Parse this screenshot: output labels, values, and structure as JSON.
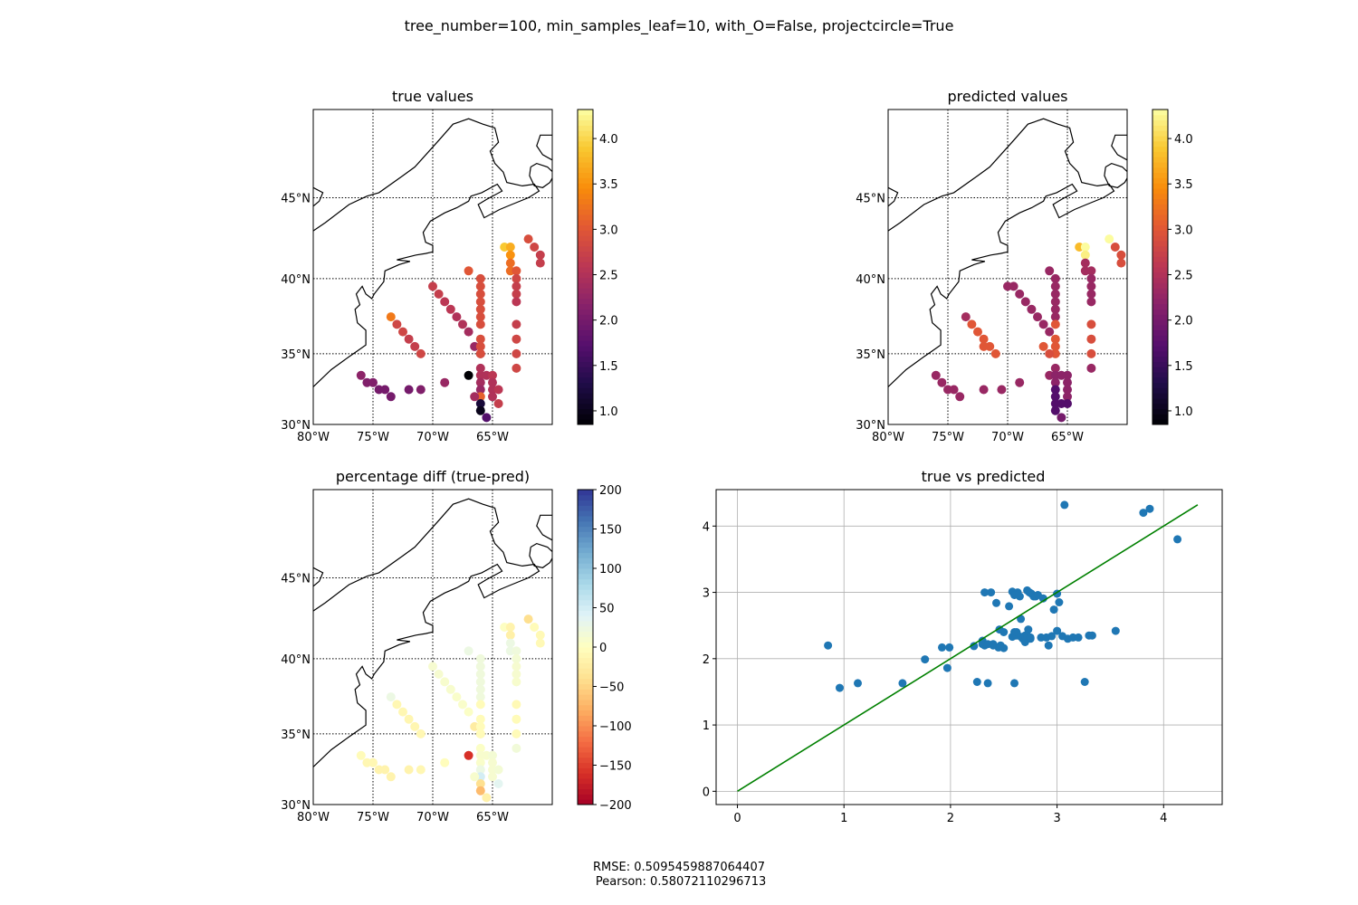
{
  "suptitle": "tree_number=100, min_samples_leaf=10, with_O=False, projectcircle=True",
  "footer": {
    "line1": "RMSE: 0.5095459887064407",
    "line2": " Pearson: 0.58072110296713"
  },
  "colors": {
    "scatter": "#1f77b4",
    "fit_line": "#008000",
    "grid": "#b0b0b0"
  },
  "map_axes": {
    "lon_ticks": [
      "80°W",
      "75°W",
      "70°W",
      "65°W"
    ],
    "lat_ticks": [
      "30°N",
      "35°N",
      "40°N",
      "45°N"
    ]
  },
  "chart_data": [
    {
      "type": "scatter",
      "title": "true values",
      "colormap": "inferno",
      "colorbar": {
        "range": [
          0.85,
          4.32
        ],
        "ticks": [
          "1.0",
          "1.5",
          "2.0",
          "2.5",
          "3.0",
          "3.5",
          "4.0"
        ]
      },
      "points": [
        [
          -76,
          33.5,
          2.2
        ],
        [
          -75.5,
          33,
          2.1
        ],
        [
          -75,
          33,
          2.1
        ],
        [
          -74.5,
          32.5,
          2.0
        ],
        [
          -74,
          32.5,
          2.0
        ],
        [
          -73.5,
          32,
          2.0
        ],
        [
          -72,
          32.5,
          2.0
        ],
        [
          -71,
          32.5,
          2.1
        ],
        [
          -69,
          33,
          2.3
        ],
        [
          -73.5,
          37.5,
          3.3
        ],
        [
          -73,
          37,
          2.8
        ],
        [
          -72.5,
          36.5,
          2.8
        ],
        [
          -72,
          36,
          2.7
        ],
        [
          -71.5,
          35.5,
          2.7
        ],
        [
          -71,
          35,
          2.8
        ],
        [
          -70,
          39.5,
          2.7
        ],
        [
          -69.5,
          39,
          2.7
        ],
        [
          -69,
          38.5,
          2.6
        ],
        [
          -68.5,
          38,
          2.6
        ],
        [
          -68,
          37.5,
          2.5
        ],
        [
          -67.5,
          37,
          2.5
        ],
        [
          -67,
          36.5,
          2.4
        ],
        [
          -66.5,
          35.5,
          2.3
        ],
        [
          -66,
          35,
          2.3
        ],
        [
          -67,
          40.5,
          3.0
        ],
        [
          -66,
          40,
          2.9
        ],
        [
          -66,
          39.5,
          2.9
        ],
        [
          -66,
          39,
          2.9
        ],
        [
          -66,
          38.5,
          2.9
        ],
        [
          -66,
          38,
          2.9
        ],
        [
          -66,
          37.5,
          2.9
        ],
        [
          -66,
          37,
          2.9
        ],
        [
          -66,
          36,
          2.9
        ],
        [
          -66,
          35.5,
          2.9
        ],
        [
          -66,
          35,
          2.9
        ],
        [
          -67,
          33.5,
          0.85
        ],
        [
          -66,
          34,
          2.5
        ],
        [
          -66,
          33.5,
          2.5
        ],
        [
          -66,
          33,
          2.4
        ],
        [
          -66,
          32.5,
          2.3
        ],
        [
          -66,
          32,
          3.1
        ],
        [
          -66,
          31.5,
          1.2
        ],
        [
          -66,
          31,
          1.0
        ],
        [
          -65.5,
          30.5,
          1.7
        ],
        [
          -65.5,
          33.5,
          2.5
        ],
        [
          -65,
          33.5,
          2.6
        ],
        [
          -65,
          33,
          2.5
        ],
        [
          -65,
          32.5,
          2.5
        ],
        [
          -65,
          32,
          2.5
        ],
        [
          -64.5,
          31.5,
          2.7
        ],
        [
          -64.5,
          32.5,
          2.6
        ],
        [
          -66.5,
          32,
          2.4
        ],
        [
          -64,
          42,
          3.9
        ],
        [
          -63.5,
          42,
          3.7
        ],
        [
          -63.5,
          41.5,
          3.5
        ],
        [
          -63.5,
          41,
          3.2
        ],
        [
          -63.5,
          40.5,
          3.2
        ],
        [
          -63,
          40.5,
          3.0
        ],
        [
          -63,
          40,
          2.8
        ],
        [
          -63,
          39.5,
          2.7
        ],
        [
          -63,
          39,
          2.7
        ],
        [
          -63,
          38.5,
          2.6
        ],
        [
          -63,
          37,
          2.7
        ],
        [
          -63,
          36,
          2.8
        ],
        [
          -63,
          35,
          2.8
        ],
        [
          -63,
          34,
          2.8
        ],
        [
          -62,
          42.5,
          2.9
        ],
        [
          -61.5,
          42,
          2.8
        ],
        [
          -61,
          41.5,
          2.7
        ],
        [
          -61,
          41,
          2.7
        ]
      ]
    },
    {
      "type": "scatter",
      "title": "predicted values",
      "colormap": "inferno",
      "colorbar": {
        "range": [
          0.85,
          4.32
        ],
        "ticks": [
          "1.0",
          "1.5",
          "2.0",
          "2.5",
          "3.0",
          "3.5",
          "4.0"
        ]
      },
      "points": [
        [
          -76,
          33.5,
          2.3
        ],
        [
          -75.5,
          33,
          2.3
        ],
        [
          -75,
          32.5,
          2.3
        ],
        [
          -74.5,
          32.5,
          2.3
        ],
        [
          -74,
          32,
          2.3
        ],
        [
          -72,
          32.5,
          2.3
        ],
        [
          -70.5,
          32.5,
          2.3
        ],
        [
          -69,
          33,
          2.3
        ],
        [
          -73.5,
          37.5,
          2.4
        ],
        [
          -73,
          37,
          3.0
        ],
        [
          -72.5,
          36.5,
          3.0
        ],
        [
          -72,
          36,
          3.0
        ],
        [
          -71.5,
          35.5,
          3.0
        ],
        [
          -71,
          35,
          3.0
        ],
        [
          -72,
          35.5,
          3.0
        ],
        [
          -70,
          39.5,
          2.3
        ],
        [
          -69.5,
          39.5,
          2.3
        ],
        [
          -69,
          39,
          2.3
        ],
        [
          -68.5,
          38.5,
          2.3
        ],
        [
          -68,
          38,
          2.3
        ],
        [
          -67.5,
          37.5,
          2.3
        ],
        [
          -67,
          37,
          2.3
        ],
        [
          -66.5,
          36.5,
          2.3
        ],
        [
          -67,
          35.5,
          3.0
        ],
        [
          -66.5,
          40.5,
          2.3
        ],
        [
          -66,
          40,
          2.3
        ],
        [
          -66,
          39.5,
          2.3
        ],
        [
          -66,
          39,
          2.3
        ],
        [
          -66,
          38.5,
          2.3
        ],
        [
          -66,
          38,
          2.3
        ],
        [
          -66,
          37.5,
          2.3
        ],
        [
          -66,
          37,
          3.0
        ],
        [
          -66,
          36,
          3.0
        ],
        [
          -66,
          35.5,
          3.0
        ],
        [
          -66,
          35,
          3.0
        ],
        [
          -66.5,
          35,
          2.9
        ],
        [
          -66.5,
          33.5,
          2.3
        ],
        [
          -66,
          34,
          2.3
        ],
        [
          -66,
          33.5,
          2.2
        ],
        [
          -66,
          33,
          2.2
        ],
        [
          -66,
          32.5,
          1.7
        ],
        [
          -66,
          32,
          1.7
        ],
        [
          -66,
          31.5,
          1.7
        ],
        [
          -66,
          31,
          1.7
        ],
        [
          -65.5,
          30.5,
          2.0
        ],
        [
          -65.5,
          33.5,
          2.2
        ],
        [
          -65,
          33.5,
          2.2
        ],
        [
          -65,
          33,
          2.2
        ],
        [
          -65,
          32.5,
          2.2
        ],
        [
          -65,
          32,
          2.2
        ],
        [
          -65,
          31.5,
          1.7
        ],
        [
          -65.5,
          31.5,
          1.7
        ],
        [
          -64,
          42,
          3.8
        ],
        [
          -63.5,
          42,
          4.3
        ],
        [
          -63.5,
          41.5,
          4.2
        ],
        [
          -63.5,
          41,
          2.4
        ],
        [
          -63.5,
          40.5,
          2.4
        ],
        [
          -63,
          40.5,
          2.4
        ],
        [
          -63,
          40,
          2.3
        ],
        [
          -63,
          39.5,
          2.3
        ],
        [
          -63,
          39,
          2.3
        ],
        [
          -63,
          38.5,
          2.3
        ],
        [
          -63,
          37,
          2.9
        ],
        [
          -63,
          36,
          2.9
        ],
        [
          -63,
          35,
          2.9
        ],
        [
          -63,
          34,
          2.3
        ],
        [
          -61.5,
          42.5,
          4.3
        ],
        [
          -61,
          42,
          2.9
        ],
        [
          -60.5,
          41.5,
          2.9
        ],
        [
          -60.5,
          41,
          2.9
        ]
      ]
    },
    {
      "type": "scatter",
      "title": "percentage diff (true-pred)",
      "colormap": "RdYlBu",
      "colorbar": {
        "range": [
          -200,
          200
        ],
        "ticks": [
          "−200",
          "−150",
          "−100",
          "−50",
          "0",
          "50",
          "100",
          "150",
          "200"
        ]
      },
      "points": [
        [
          -76,
          33.5,
          -5
        ],
        [
          -75.5,
          33,
          -10
        ],
        [
          -75,
          33,
          -10
        ],
        [
          -74.5,
          32.5,
          -15
        ],
        [
          -74,
          32.5,
          -15
        ],
        [
          -73.5,
          32,
          -15
        ],
        [
          -72,
          32.5,
          -15
        ],
        [
          -71,
          32.5,
          -10
        ],
        [
          -69,
          33,
          -2
        ],
        [
          -73.5,
          37.5,
          25
        ],
        [
          -73,
          37,
          -10
        ],
        [
          -72.5,
          36.5,
          -10
        ],
        [
          -72,
          36,
          -12
        ],
        [
          -71.5,
          35.5,
          -12
        ],
        [
          -71,
          35,
          -10
        ],
        [
          -70,
          39.5,
          12
        ],
        [
          -69.5,
          39,
          12
        ],
        [
          -69,
          38.5,
          10
        ],
        [
          -68.5,
          38,
          10
        ],
        [
          -68,
          37.5,
          8
        ],
        [
          -67.5,
          37,
          8
        ],
        [
          -67,
          36.5,
          5
        ],
        [
          -66.5,
          35.5,
          -25
        ],
        [
          -66,
          35,
          -30
        ],
        [
          -67,
          40.5,
          25
        ],
        [
          -66,
          40,
          20
        ],
        [
          -66,
          39.5,
          20
        ],
        [
          -66,
          39,
          20
        ],
        [
          -66,
          38.5,
          20
        ],
        [
          -66,
          38,
          20
        ],
        [
          -66,
          37.5,
          20
        ],
        [
          -66,
          37,
          -5
        ],
        [
          -66,
          36,
          -5
        ],
        [
          -66,
          35.5,
          -5
        ],
        [
          -66,
          35,
          -5
        ],
        [
          -67,
          33.5,
          -160
        ],
        [
          -66,
          34,
          5
        ],
        [
          -66,
          33.5,
          10
        ],
        [
          -66,
          33,
          8
        ],
        [
          -66,
          32.5,
          25
        ],
        [
          -66,
          32,
          50
        ],
        [
          -66,
          31.5,
          -40
        ],
        [
          -66,
          31,
          -70
        ],
        [
          -65.5,
          30.5,
          -18
        ],
        [
          -65.5,
          33.5,
          10
        ],
        [
          -65,
          33.5,
          15
        ],
        [
          -65,
          33,
          12
        ],
        [
          -65,
          32.5,
          12
        ],
        [
          -65,
          32,
          12
        ],
        [
          -64.5,
          31.5,
          35
        ],
        [
          -64.5,
          32.5,
          15
        ],
        [
          -66.5,
          32,
          10
        ],
        [
          -64,
          42,
          2
        ],
        [
          -63.5,
          42,
          -15
        ],
        [
          -63.5,
          41.5,
          -20
        ],
        [
          -63.5,
          41,
          25
        ],
        [
          -63.5,
          40.5,
          25
        ],
        [
          -63,
          40.5,
          20
        ],
        [
          -63,
          40,
          15
        ],
        [
          -63,
          39.5,
          12
        ],
        [
          -63,
          39,
          12
        ],
        [
          -63,
          38.5,
          10
        ],
        [
          -63,
          37,
          -8
        ],
        [
          -63,
          36,
          -5
        ],
        [
          -63,
          35,
          -5
        ],
        [
          -63,
          34,
          18
        ],
        [
          -62,
          42.5,
          -40
        ],
        [
          -61.5,
          42,
          -5
        ],
        [
          -61,
          41.5,
          -8
        ],
        [
          -61,
          41,
          -8
        ]
      ]
    },
    {
      "type": "scatter",
      "title": "true vs predicted",
      "xlim": [
        -0.2,
        4.55
      ],
      "ylim": [
        -0.2,
        4.55
      ],
      "xticks": [
        0,
        1,
        2,
        3,
        4
      ],
      "yticks": [
        0,
        1,
        2,
        3,
        4
      ],
      "grid": true,
      "line": {
        "x": [
          0,
          4.32
        ],
        "y": [
          0,
          4.32
        ]
      },
      "x": [
        0.85,
        0.96,
        1.13,
        1.55,
        1.76,
        1.92,
        1.97,
        1.99,
        2.22,
        2.25,
        2.3,
        2.32,
        2.35,
        2.38,
        2.4,
        2.43,
        2.45,
        2.46,
        2.5,
        2.55,
        2.58,
        2.58,
        2.6,
        2.61,
        2.62,
        2.63,
        2.65,
        2.66,
        2.68,
        2.7,
        2.7,
        2.72,
        2.73,
        2.74,
        2.75,
        2.76,
        2.78,
        2.8,
        2.82,
        2.85,
        2.87,
        2.9,
        2.92,
        2.95,
        2.97,
        3.0,
        3.0,
        3.02,
        3.05,
        3.1,
        3.15,
        3.2,
        3.26,
        3.3,
        3.33,
        3.55,
        3.07,
        3.81,
        3.87,
        4.13,
        2.3,
        2.32,
        2.35,
        2.4,
        2.6,
        2.62,
        2.66,
        2.68,
        2.7,
        2.72,
        2.6,
        2.75,
        2.5,
        2.47
      ],
      "y": [
        2.2,
        1.56,
        1.63,
        1.63,
        1.99,
        2.17,
        1.86,
        2.17,
        2.19,
        1.65,
        2.27,
        2.2,
        1.63,
        3.0,
        2.22,
        2.84,
        2.17,
        2.44,
        2.16,
        2.79,
        2.33,
        3.01,
        2.4,
        2.35,
        2.35,
        3.0,
        2.94,
        2.6,
        2.3,
        2.35,
        2.25,
        3.03,
        2.44,
        3.0,
        2.3,
        2.98,
        2.94,
        2.94,
        2.96,
        2.32,
        2.91,
        2.32,
        2.2,
        2.34,
        2.74,
        2.42,
        2.98,
        2.85,
        2.34,
        2.3,
        2.32,
        2.32,
        1.65,
        2.35,
        2.35,
        2.42,
        4.32,
        4.2,
        4.26,
        3.8,
        2.22,
        3.0,
        2.22,
        2.2,
        1.63,
        2.4,
        2.33,
        2.3,
        2.28,
        2.35,
        2.96,
        2.32,
        2.4,
        2.2
      ]
    }
  ]
}
